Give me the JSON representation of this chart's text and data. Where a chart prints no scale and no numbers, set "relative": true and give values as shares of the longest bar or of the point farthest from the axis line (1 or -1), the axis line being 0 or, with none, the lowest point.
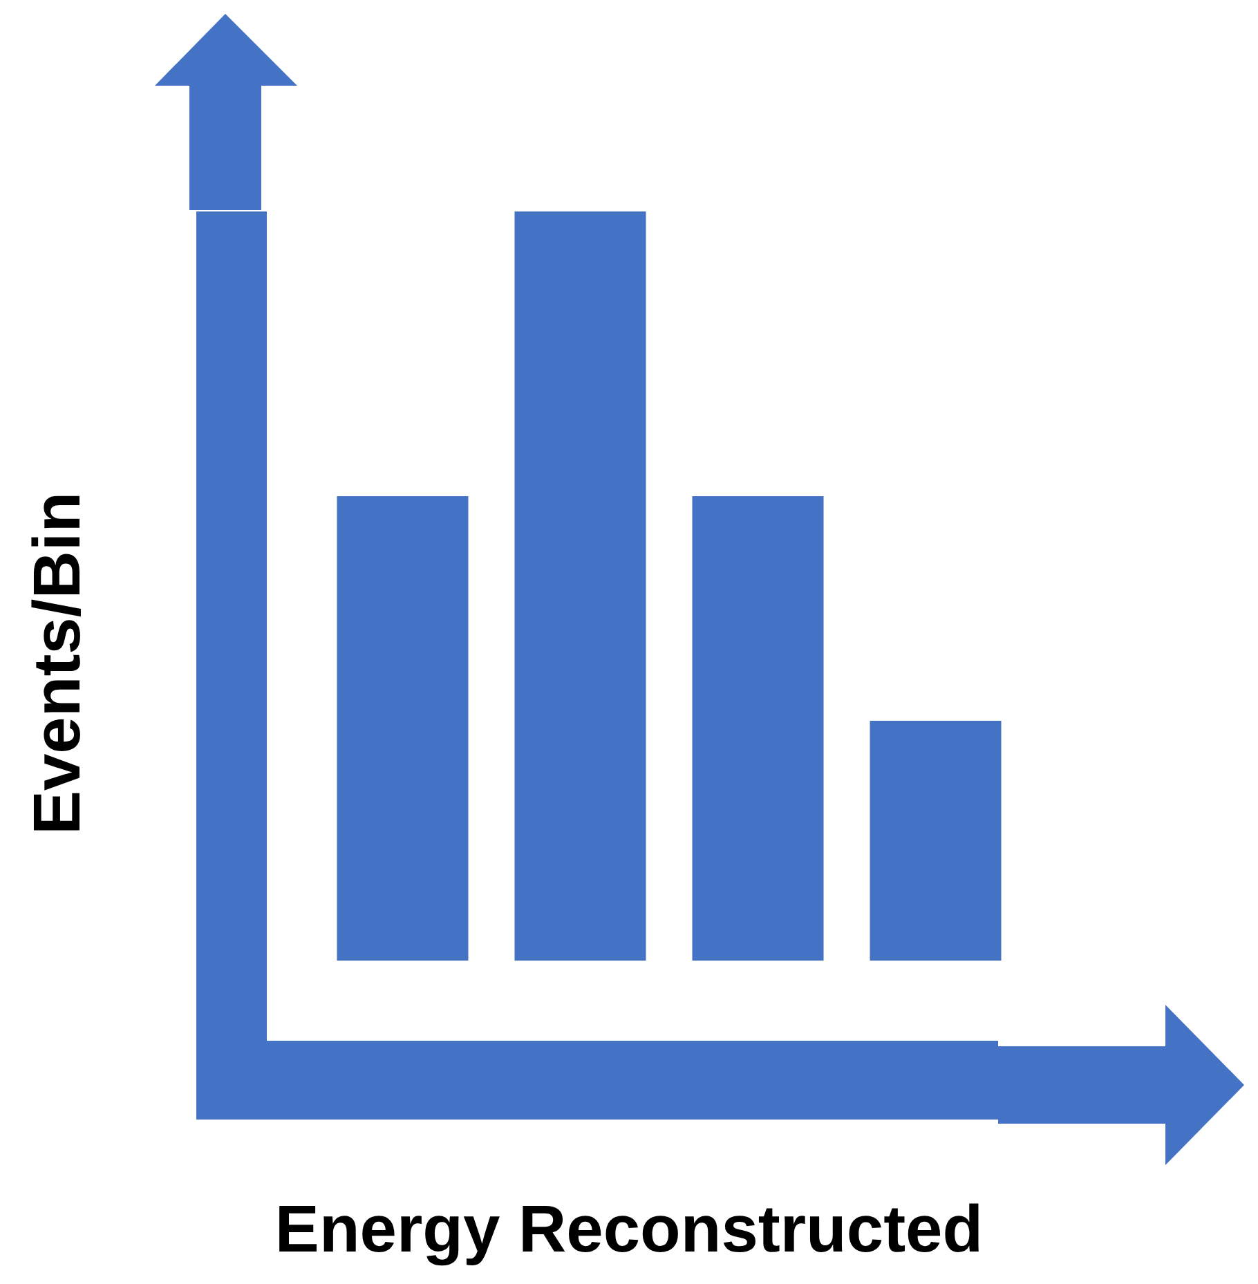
{
  "chart_data": {
    "type": "bar",
    "xlabel": "Energy Reconstructed",
    "ylabel": "Events/Bin",
    "categories": [
      null,
      null,
      null,
      null
    ],
    "values": [
      0.62,
      1,
      0.62,
      0.32
    ],
    "color": "#4472c4",
    "relative": true
  }
}
